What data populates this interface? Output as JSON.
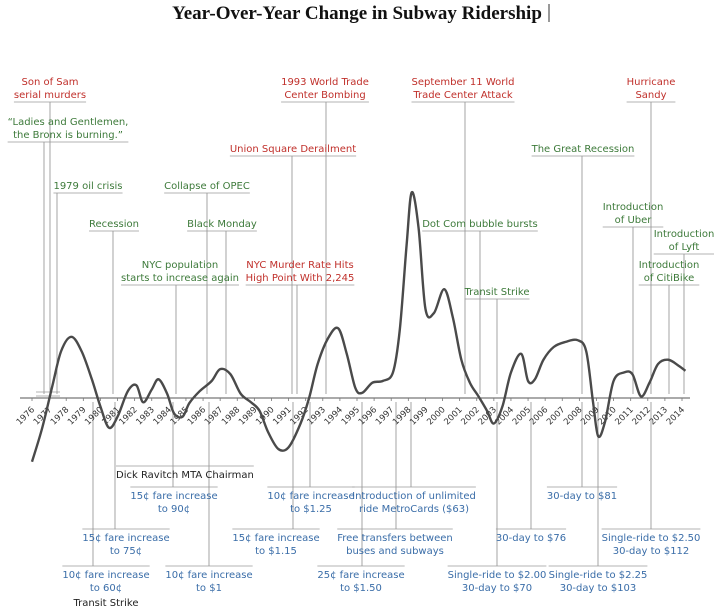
{
  "chart_data": {
    "type": "line",
    "title": "Year-Over-Year Change in Subway Ridership",
    "xlabel": "",
    "ylabel": "",
    "grid": false,
    "legend": "none",
    "x_ticks": [
      "1976",
      "1977",
      "1978",
      "1979",
      "1980",
      "1981",
      "1982",
      "1983",
      "1984",
      "1985",
      "1986",
      "1987",
      "1988",
      "1989",
      "1990",
      "1991",
      "1992",
      "1993",
      "1994",
      "1995",
      "1996",
      "1997",
      "1998",
      "1999",
      "2000",
      "2001",
      "2002",
      "2003",
      "2004",
      "2005",
      "2006",
      "2007",
      "2008",
      "2009",
      "2010",
      "2011",
      "2012",
      "2013",
      "2014"
    ],
    "curve": [
      [
        1976.0,
        -0.75
      ],
      [
        1976.6,
        -0.35
      ],
      [
        1977.2,
        0.15
      ],
      [
        1977.7,
        0.55
      ],
      [
        1978.3,
        0.72
      ],
      [
        1978.9,
        0.55
      ],
      [
        1979.5,
        0.22
      ],
      [
        1980.0,
        -0.1
      ],
      [
        1980.5,
        -0.35
      ],
      [
        1981.0,
        -0.22
      ],
      [
        1981.6,
        0.08
      ],
      [
        1982.1,
        0.15
      ],
      [
        1982.5,
        -0.05
      ],
      [
        1983.0,
        0.1
      ],
      [
        1983.4,
        0.22
      ],
      [
        1983.9,
        0.05
      ],
      [
        1984.3,
        -0.18
      ],
      [
        1984.8,
        -0.22
      ],
      [
        1985.2,
        -0.06
      ],
      [
        1985.8,
        0.08
      ],
      [
        1986.5,
        0.2
      ],
      [
        1987.0,
        0.34
      ],
      [
        1987.6,
        0.28
      ],
      [
        1988.2,
        0.05
      ],
      [
        1988.8,
        -0.05
      ],
      [
        1989.3,
        -0.15
      ],
      [
        1989.8,
        -0.4
      ],
      [
        1990.4,
        -0.6
      ],
      [
        1991.0,
        -0.58
      ],
      [
        1991.7,
        -0.3
      ],
      [
        1992.2,
        0.0
      ],
      [
        1992.7,
        0.4
      ],
      [
        1993.3,
        0.7
      ],
      [
        1993.9,
        0.82
      ],
      [
        1994.4,
        0.52
      ],
      [
        1994.9,
        0.12
      ],
      [
        1995.3,
        0.06
      ],
      [
        1995.9,
        0.18
      ],
      [
        1996.5,
        0.2
      ],
      [
        1997.1,
        0.3
      ],
      [
        1997.5,
        0.8
      ],
      [
        1997.9,
        1.8
      ],
      [
        1998.2,
        2.42
      ],
      [
        1998.6,
        2.0
      ],
      [
        1999.0,
        1.05
      ],
      [
        1999.5,
        1.0
      ],
      [
        2000.1,
        1.28
      ],
      [
        2000.6,
        0.95
      ],
      [
        2001.1,
        0.45
      ],
      [
        2001.6,
        0.18
      ],
      [
        2002.1,
        0.02
      ],
      [
        2002.6,
        -0.15
      ],
      [
        2003.0,
        -0.3
      ],
      [
        2003.5,
        -0.1
      ],
      [
        2004.0,
        0.3
      ],
      [
        2004.6,
        0.52
      ],
      [
        2005.0,
        0.2
      ],
      [
        2005.4,
        0.22
      ],
      [
        2005.9,
        0.45
      ],
      [
        2006.5,
        0.6
      ],
      [
        2007.2,
        0.66
      ],
      [
        2007.9,
        0.68
      ],
      [
        2008.4,
        0.55
      ],
      [
        2008.8,
        -0.05
      ],
      [
        2009.1,
        -0.45
      ],
      [
        2009.5,
        -0.28
      ],
      [
        2010.0,
        0.2
      ],
      [
        2010.6,
        0.3
      ],
      [
        2011.1,
        0.28
      ],
      [
        2011.6,
        0.02
      ],
      [
        2012.1,
        0.18
      ],
      [
        2012.6,
        0.4
      ],
      [
        2013.2,
        0.45
      ],
      [
        2013.8,
        0.38
      ],
      [
        2014.2,
        0.32
      ]
    ],
    "annotations": [
      {
        "id": "son-of-sam",
        "lines": [
          "Son of Sam",
          "serial murders"
        ],
        "color": "red",
        "side": "above",
        "year": 1977.0
      },
      {
        "id": "bronx-burning",
        "lines": [
          "“Ladies and Gentlemen,",
          "the Bronx is burning.”"
        ],
        "color": "green",
        "side": "above",
        "year": 1976.5
      },
      {
        "id": "oil-crisis-1979",
        "lines": [
          "1979 oil crisis"
        ],
        "color": "green",
        "side": "above",
        "year": 1978.6
      },
      {
        "id": "recession-1980",
        "lines": [
          "Recession"
        ],
        "color": "green",
        "side": "above",
        "year": 1980.5
      },
      {
        "id": "nyc-population",
        "lines": [
          "NYC population",
          "starts to increase again"
        ],
        "color": "green",
        "side": "above",
        "year": 1984.8
      },
      {
        "id": "collapse-of-opec",
        "lines": [
          "Collapse of OPEC"
        ],
        "color": "green",
        "side": "above",
        "year": 1985.9
      },
      {
        "id": "black-monday",
        "lines": [
          "Black Monday"
        ],
        "color": "green",
        "side": "above",
        "year": 1987.4
      },
      {
        "id": "union-square-derailment",
        "lines": [
          "Union Square Derailment"
        ],
        "color": "red",
        "side": "above",
        "year": 1990.6
      },
      {
        "id": "wtc-bombing-1993",
        "lines": [
          "1993 World Trade",
          "Center Bombing"
        ],
        "color": "red",
        "side": "above",
        "year": 1992.8
      },
      {
        "id": "murder-rate",
        "lines": [
          "NYC Murder Rate Hits",
          "High Point With 2,245"
        ],
        "color": "red",
        "side": "above",
        "year": 1990.9
      },
      {
        "id": "september-11",
        "lines": [
          "September 11 World",
          "Trade Center Attack"
        ],
        "color": "red",
        "side": "above",
        "year": 2001.0
      },
      {
        "id": "dot-com",
        "lines": [
          "Dot Com bubble bursts"
        ],
        "color": "green",
        "side": "above",
        "year": 2000.3
      },
      {
        "id": "transit-strike-2005",
        "lines": [
          "Transit Strike"
        ],
        "color": "green",
        "side": "above",
        "year": 2002.8
      },
      {
        "id": "great-recession",
        "lines": [
          "The Great Recession"
        ],
        "color": "green",
        "side": "above",
        "year": 2008.5
      },
      {
        "id": "hurricane-sandy",
        "lines": [
          "Hurricane",
          "Sandy"
        ],
        "color": "red",
        "side": "above",
        "year": 2012.0
      },
      {
        "id": "intro-uber",
        "lines": [
          "Introduction",
          "of Uber"
        ],
        "color": "green",
        "side": "above",
        "year": 2010.8
      },
      {
        "id": "intro-citibike",
        "lines": [
          "Introduction",
          "of CitiBike"
        ],
        "color": "green",
        "side": "above",
        "year": 2012.6
      },
      {
        "id": "intro-lyft",
        "lines": [
          "Introduction",
          "of Lyft"
        ],
        "color": "green",
        "side": "above",
        "year": 2013.5
      },
      {
        "id": "dick-ravitch",
        "lines": [
          "Dick Ravitch MTA Chairman"
        ],
        "color": "black",
        "side": "below",
        "year": 1980.0
      },
      {
        "id": "fare-90",
        "lines": [
          "15¢ fare increase",
          "to 90¢"
        ],
        "color": "blue",
        "side": "below",
        "year": 1984.0
      },
      {
        "id": "fare-75",
        "lines": [
          "15¢ fare increase",
          "to 75¢"
        ],
        "color": "blue",
        "side": "below",
        "year": 1981.5
      },
      {
        "id": "fare-60",
        "lines": [
          "10¢ fare increase",
          "to 60¢"
        ],
        "color": "blue",
        "side": "below",
        "year": 1980.0
      },
      {
        "id": "transit-strike-1980",
        "lines": [
          "Transit Strike"
        ],
        "color": "black",
        "side": "below",
        "year": 1980.0
      },
      {
        "id": "fare-1",
        "lines": [
          "10¢ fare increase",
          "to $1"
        ],
        "color": "blue",
        "side": "below",
        "year": 1986.0
      },
      {
        "id": "fare-125",
        "lines": [
          "10¢ fare increase",
          "to $1.25"
        ],
        "color": "blue",
        "side": "below",
        "year": 1992.0
      },
      {
        "id": "fare-115",
        "lines": [
          "15¢ fare increase",
          "to $1.15"
        ],
        "color": "blue",
        "side": "below",
        "year": 1990.0
      },
      {
        "id": "fare-150",
        "lines": [
          "25¢ fare increase",
          "to $1.50"
        ],
        "color": "blue",
        "side": "below",
        "year": 1995.0
      },
      {
        "id": "free-transfers",
        "lines": [
          "Free transfers between",
          "buses and subways"
        ],
        "color": "blue",
        "side": "below",
        "year": 1997.0
      },
      {
        "id": "unlimited-metrocard",
        "lines": [
          "Introduction of unlimited",
          "ride MetroCards ($63)"
        ],
        "color": "blue",
        "side": "below",
        "year": 1998.0
      },
      {
        "id": "single-200",
        "lines": [
          "Single-ride to $2.00",
          "30-day to $70"
        ],
        "color": "blue",
        "side": "below",
        "year": 2003.0
      },
      {
        "id": "thirty-76",
        "lines": [
          "30-day to $76"
        ],
        "color": "blue",
        "side": "below",
        "year": 2005.0
      },
      {
        "id": "thirty-81",
        "lines": [
          "30-day to $81"
        ],
        "color": "blue",
        "side": "below",
        "year": 2008.0
      },
      {
        "id": "single-225",
        "lines": [
          "Single-ride to $2.25",
          "30-day to $103"
        ],
        "color": "blue",
        "side": "below",
        "year": 2009.0
      },
      {
        "id": "single-250",
        "lines": [
          "Single-ride to $2.50",
          "30-day to $112"
        ],
        "color": "blue",
        "side": "below",
        "year": 2012.0
      }
    ]
  },
  "colors": {
    "red": "#c0302b",
    "green": "#3d7a3a",
    "blue": "#3a6da8",
    "black": "#222222",
    "curve": "#4a4a4a",
    "leader": "#9a9a9a"
  }
}
